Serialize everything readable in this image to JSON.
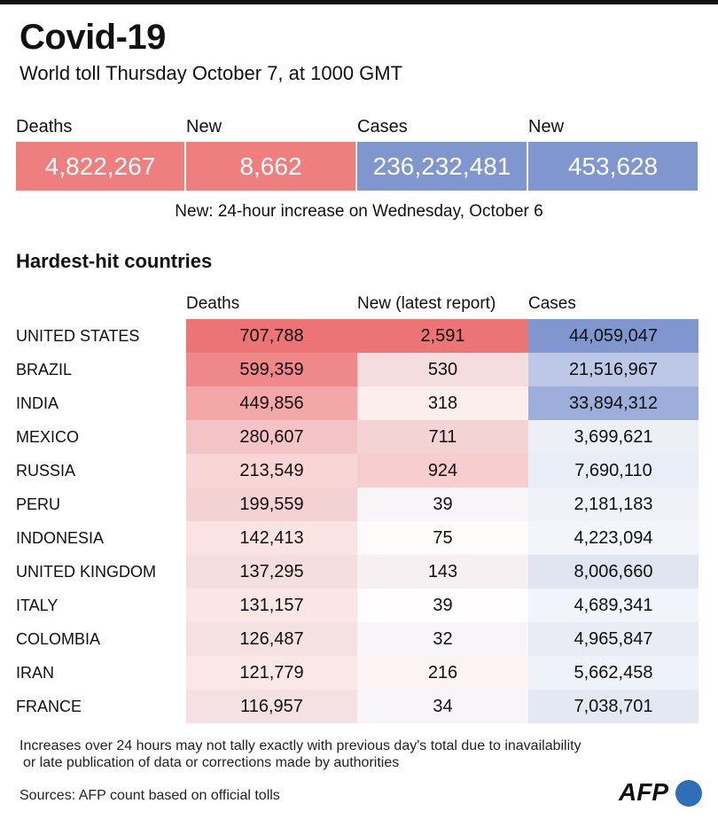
{
  "header": {
    "title": "Covid-19",
    "subtitle": "World toll Thursday October 7, at 1000 GMT"
  },
  "summary": [
    {
      "label": "Deaths",
      "value": "4,822,267",
      "color": "#ef7f7f"
    },
    {
      "label": "New",
      "value": "8,662",
      "color": "#ef7f7f"
    },
    {
      "label": "Cases",
      "value": "236,232,481",
      "color": "#7f96cf"
    },
    {
      "label": "New",
      "value": "453,628",
      "color": "#7f96cf"
    }
  ],
  "note": "New: 24-hour increase on Wednesday, October 6",
  "section_title": "Hardest-hit countries",
  "table": {
    "columns": [
      "Deaths",
      "New (latest report)",
      "Cases"
    ],
    "colors": [
      "#ec7474",
      "#ec7474",
      "#7f96cf"
    ],
    "rows": [
      {
        "country": "UNITED STATES",
        "deaths": "707,788",
        "new": "2,591",
        "cases": "44,059,047"
      },
      {
        "country": "BRAZIL",
        "deaths": "599,359",
        "new": "530",
        "cases": "21,516,967"
      },
      {
        "country": "INDIA",
        "deaths": "449,856",
        "new": "318",
        "cases": "33,894,312"
      },
      {
        "country": "MEXICO",
        "deaths": "280,607",
        "new": "711",
        "cases": "3,699,621"
      },
      {
        "country": "RUSSIA",
        "deaths": "213,549",
        "new": "924",
        "cases": "7,690,110"
      },
      {
        "country": "PERU",
        "deaths": "199,559",
        "new": "39",
        "cases": "2,181,183"
      },
      {
        "country": "INDONESIA",
        "deaths": "142,413",
        "new": "75",
        "cases": "4,223,094"
      },
      {
        "country": "UNITED KINGDOM",
        "deaths": "137,295",
        "new": "143",
        "cases": "8,006,660"
      },
      {
        "country": "ITALY",
        "deaths": "131,157",
        "new": "39",
        "cases": "4,689,341"
      },
      {
        "country": "COLOMBIA",
        "deaths": "126,487",
        "new": "32",
        "cases": "4,965,847"
      },
      {
        "country": "IRAN",
        "deaths": "121,779",
        "new": "216",
        "cases": "5,662,458"
      },
      {
        "country": "FRANCE",
        "deaths": "116,957",
        "new": "34",
        "cases": "7,038,701"
      }
    ]
  },
  "footnote": [
    "Increases over 24 hours may not tally exactly with previous day's total due to inavailability",
    "or late publication of data or corrections made by authorities"
  ],
  "source": "Sources: AFP count based on official tolls",
  "logo": "AFP"
}
